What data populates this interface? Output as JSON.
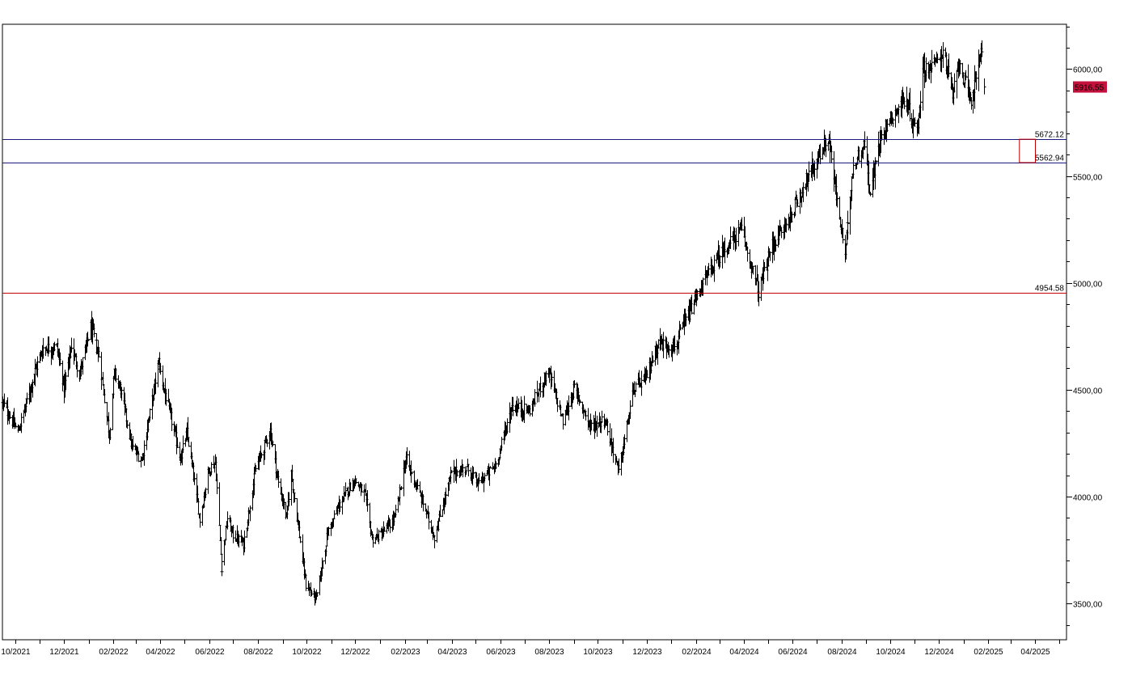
{
  "chart_data": {
    "type": "ohlc",
    "title": "",
    "xlabel": "",
    "ylabel": "",
    "ylim": [
      3330,
      6210
    ],
    "xlim": [
      "2021-09-15",
      "2025-05-10"
    ],
    "grid": false,
    "x_ticks": [
      "10/2021",
      "12/2021",
      "02/2022",
      "04/2022",
      "06/2022",
      "08/2022",
      "10/2022",
      "12/2022",
      "02/2023",
      "04/2023",
      "06/2023",
      "08/2023",
      "10/2023",
      "12/2023",
      "02/2024",
      "04/2024",
      "06/2024",
      "08/2024",
      "10/2024",
      "12/2024",
      "02/2025",
      "04/2025"
    ],
    "y_ticks": [
      {
        "value": 3500,
        "label": "3500,00"
      },
      {
        "value": 4000,
        "label": "4000,00"
      },
      {
        "value": 4500,
        "label": "4500,00"
      },
      {
        "value": 5000,
        "label": "5000,00"
      },
      {
        "value": 5500,
        "label": "5500,00"
      },
      {
        "value": 6000,
        "label": "6000,00"
      }
    ],
    "last_price": {
      "value": 5916.55,
      "label": "5916,55",
      "color": "#c4103c"
    },
    "horizontal_lines": [
      {
        "value": 5672.12,
        "label": "5672.12",
        "color": "#1a1a7a"
      },
      {
        "value": 5562.94,
        "label": "5562.94",
        "color": "#1a1a7a"
      },
      {
        "value": 4954.58,
        "label": "4954.58",
        "color": "#c00000"
      }
    ],
    "annotation_box": {
      "x_from": "2025-03-12",
      "x_to": "2025-04-01",
      "y_from": 5562.94,
      "y_to": 5672.12,
      "color": "#c00000"
    },
    "series": [
      {
        "name": "",
        "color": "#000000",
        "points": [
          [
            "2021-09-15",
            4440
          ],
          [
            "2021-10-04",
            4300
          ],
          [
            "2021-10-22",
            4545
          ],
          [
            "2021-11-05",
            4695
          ],
          [
            "2021-11-22",
            4700
          ],
          [
            "2021-12-01",
            4510
          ],
          [
            "2021-12-10",
            4710
          ],
          [
            "2021-12-20",
            4570
          ],
          [
            "2022-01-03",
            4795
          ],
          [
            "2022-01-14",
            4660
          ],
          [
            "2022-01-27",
            4290
          ],
          [
            "2022-02-02",
            4580
          ],
          [
            "2022-02-10",
            4500
          ],
          [
            "2022-02-24",
            4230
          ],
          [
            "2022-03-08",
            4170
          ],
          [
            "2022-03-29",
            4630
          ],
          [
            "2022-04-12",
            4400
          ],
          [
            "2022-04-26",
            4180
          ],
          [
            "2022-05-04",
            4300
          ],
          [
            "2022-05-20",
            3890
          ],
          [
            "2022-05-31",
            4130
          ],
          [
            "2022-06-08",
            4160
          ],
          [
            "2022-06-16",
            3670
          ],
          [
            "2022-06-24",
            3900
          ],
          [
            "2022-07-01",
            3820
          ],
          [
            "2022-07-14",
            3780
          ],
          [
            "2022-07-29",
            4130
          ],
          [
            "2022-08-16",
            4310
          ],
          [
            "2022-08-26",
            4060
          ],
          [
            "2022-09-06",
            3900
          ],
          [
            "2022-09-12",
            4110
          ],
          [
            "2022-09-30",
            3585
          ],
          [
            "2022-10-13",
            3520
          ],
          [
            "2022-10-27",
            3830
          ],
          [
            "2022-11-10",
            3960
          ],
          [
            "2022-11-30",
            4080
          ],
          [
            "2022-12-13",
            4010
          ],
          [
            "2022-12-22",
            3800
          ],
          [
            "2023-01-03",
            3825
          ],
          [
            "2023-01-19",
            3900
          ],
          [
            "2023-02-02",
            4180
          ],
          [
            "2023-02-24",
            3970
          ],
          [
            "2023-03-10",
            3810
          ],
          [
            "2023-03-31",
            4110
          ],
          [
            "2023-04-20",
            4130
          ],
          [
            "2023-05-04",
            4060
          ],
          [
            "2023-05-26",
            4150
          ],
          [
            "2023-06-15",
            4425
          ],
          [
            "2023-07-06",
            4400
          ],
          [
            "2023-07-31",
            4590
          ],
          [
            "2023-08-18",
            4350
          ],
          [
            "2023-09-01",
            4510
          ],
          [
            "2023-09-21",
            4330
          ],
          [
            "2023-10-10",
            4360
          ],
          [
            "2023-10-27",
            4115
          ],
          [
            "2023-11-14",
            4500
          ],
          [
            "2023-11-30",
            4560
          ],
          [
            "2023-12-15",
            4720
          ],
          [
            "2024-01-05",
            4700
          ],
          [
            "2024-01-22",
            4850
          ],
          [
            "2024-02-12",
            5020
          ],
          [
            "2024-03-01",
            5130
          ],
          [
            "2024-03-28",
            5250
          ],
          [
            "2024-04-19",
            4960
          ],
          [
            "2024-05-06",
            5180
          ],
          [
            "2024-05-28",
            5300
          ],
          [
            "2024-06-18",
            5480
          ],
          [
            "2024-07-10",
            5640
          ],
          [
            "2024-07-16",
            5670
          ],
          [
            "2024-07-25",
            5400
          ],
          [
            "2024-08-05",
            5130
          ],
          [
            "2024-08-15",
            5540
          ],
          [
            "2024-08-30",
            5650
          ],
          [
            "2024-09-06",
            5410
          ],
          [
            "2024-09-19",
            5700
          ],
          [
            "2024-10-18",
            5860
          ],
          [
            "2024-11-04",
            5710
          ],
          [
            "2024-11-11",
            6000
          ],
          [
            "2024-11-26",
            6020
          ],
          [
            "2024-12-06",
            6090
          ],
          [
            "2024-12-18",
            5870
          ],
          [
            "2024-12-26",
            6040
          ],
          [
            "2025-01-10",
            5830
          ],
          [
            "2025-01-17",
            5990
          ],
          [
            "2025-01-24",
            6100
          ],
          [
            "2025-01-27",
            5916.55
          ]
        ]
      }
    ]
  }
}
